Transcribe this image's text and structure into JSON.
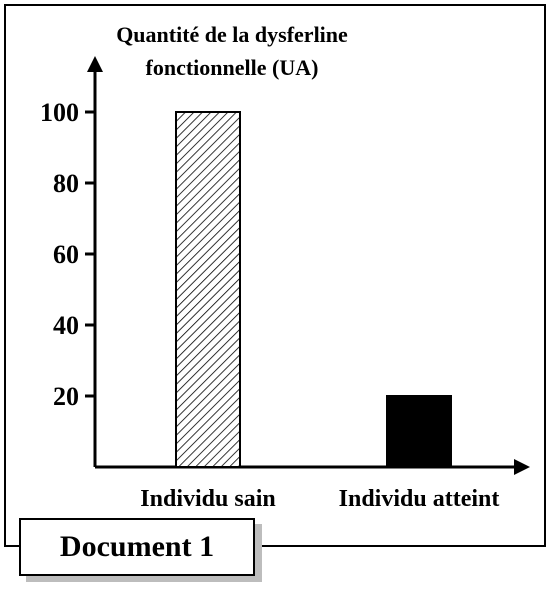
{
  "chart_data": {
    "type": "bar",
    "ylabel": [
      "Quantité de la dysferline",
      "fonctionnelle (UA)"
    ],
    "yticks": [
      20,
      40,
      60,
      80,
      100
    ],
    "ylim": [
      0,
      100
    ],
    "categories": [
      "Individu sain",
      "Individu atteint"
    ],
    "values": [
      100,
      20
    ],
    "bar_styles": [
      "hatched",
      "solid-black"
    ]
  },
  "caption": "Document 1"
}
